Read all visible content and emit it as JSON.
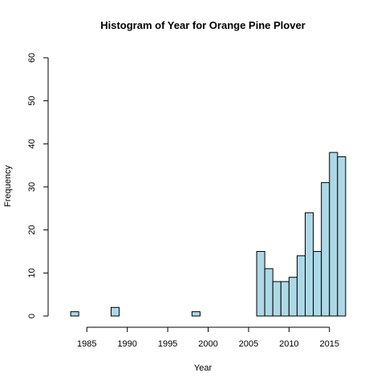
{
  "chart_data": {
    "type": "histogram",
    "title": "Histogram of Year for Orange Pine Plover",
    "xlabel": "Year",
    "ylabel": "Frequency",
    "xlim": [
      1982,
      2018
    ],
    "ylim": [
      0,
      60
    ],
    "x_ticks": [
      1985,
      1990,
      1995,
      2000,
      2005,
      2010,
      2015
    ],
    "y_ticks": [
      0,
      10,
      20,
      30,
      40,
      50,
      60
    ],
    "bin_width": 1,
    "bins": [
      {
        "start": 1983,
        "end": 1984,
        "count": 1
      },
      {
        "start": 1984,
        "end": 1985,
        "count": 0
      },
      {
        "start": 1985,
        "end": 1986,
        "count": 0
      },
      {
        "start": 1986,
        "end": 1987,
        "count": 0
      },
      {
        "start": 1987,
        "end": 1988,
        "count": 0
      },
      {
        "start": 1988,
        "end": 1989,
        "count": 2
      },
      {
        "start": 1989,
        "end": 1990,
        "count": 0
      },
      {
        "start": 1990,
        "end": 1991,
        "count": 0
      },
      {
        "start": 1991,
        "end": 1992,
        "count": 0
      },
      {
        "start": 1992,
        "end": 1993,
        "count": 0
      },
      {
        "start": 1993,
        "end": 1994,
        "count": 0
      },
      {
        "start": 1994,
        "end": 1995,
        "count": 0
      },
      {
        "start": 1995,
        "end": 1996,
        "count": 0
      },
      {
        "start": 1996,
        "end": 1997,
        "count": 0
      },
      {
        "start": 1997,
        "end": 1998,
        "count": 0
      },
      {
        "start": 1998,
        "end": 1999,
        "count": 1
      },
      {
        "start": 1999,
        "end": 2000,
        "count": 0
      },
      {
        "start": 2000,
        "end": 2001,
        "count": 0
      },
      {
        "start": 2001,
        "end": 2002,
        "count": 0
      },
      {
        "start": 2002,
        "end": 2003,
        "count": 0
      },
      {
        "start": 2003,
        "end": 2004,
        "count": 0
      },
      {
        "start": 2004,
        "end": 2005,
        "count": 0
      },
      {
        "start": 2005,
        "end": 2006,
        "count": 0
      },
      {
        "start": 2006,
        "end": 2007,
        "count": 15
      },
      {
        "start": 2007,
        "end": 2008,
        "count": 11
      },
      {
        "start": 2008,
        "end": 2009,
        "count": 8
      },
      {
        "start": 2009,
        "end": 2010,
        "count": 8
      },
      {
        "start": 2010,
        "end": 2011,
        "count": 9
      },
      {
        "start": 2011,
        "end": 2012,
        "count": 14
      },
      {
        "start": 2012,
        "end": 2013,
        "count": 24
      },
      {
        "start": 2013,
        "end": 2014,
        "count": 15
      },
      {
        "start": 2014,
        "end": 2015,
        "count": 31
      },
      {
        "start": 2015,
        "end": 2016,
        "count": 38
      },
      {
        "start": 2016,
        "end": 2017,
        "count": 37
      }
    ],
    "bar_color": "#add8e6",
    "grid": false
  }
}
